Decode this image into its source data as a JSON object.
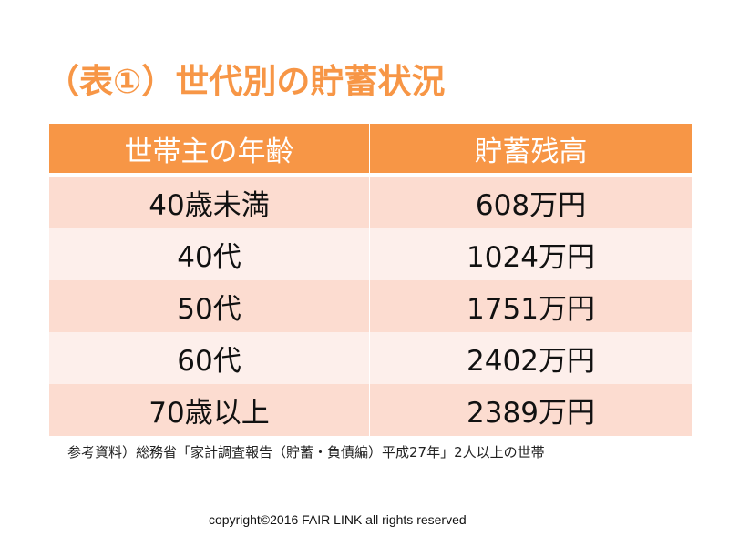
{
  "slide": {
    "title": "（表①）世代別の貯蓄状況",
    "accent_color": "#f79646",
    "row_colors": [
      "#fcdcd0",
      "#fdefeb"
    ]
  },
  "table": {
    "headers": [
      "世帯主の年齢",
      "貯蓄残高"
    ],
    "rows": [
      {
        "age": "40歳未満",
        "savings": "608万円"
      },
      {
        "age": "40代",
        "savings": "1024万円"
      },
      {
        "age": "50代",
        "savings": "1751万円"
      },
      {
        "age": "60代",
        "savings": "2402万円"
      },
      {
        "age": "70歳以上",
        "savings": "2389万円"
      }
    ]
  },
  "footnote": "参考資料）総務省「家計調査報告（貯蓄・負債編）平成27年」2人以上の世帯",
  "copyright": "copyright©2016 FAIR LINK  all rights reserved"
}
